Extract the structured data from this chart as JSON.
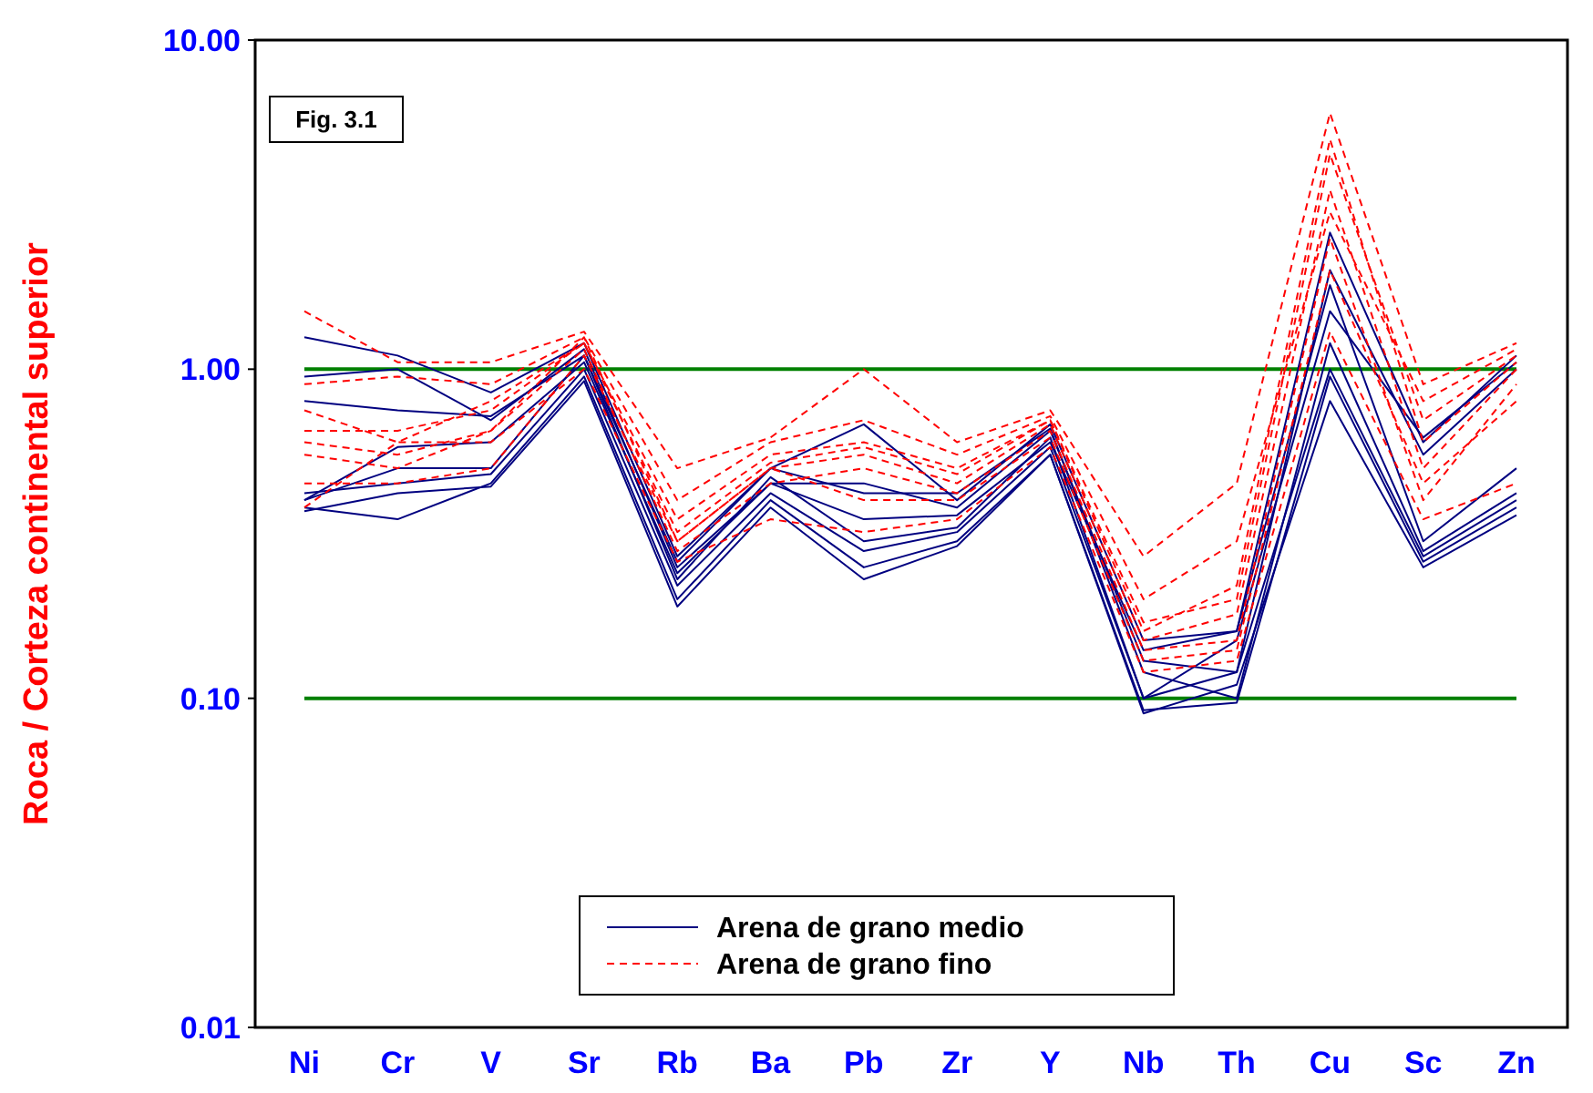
{
  "chart_data": {
    "type": "line",
    "log": true,
    "ylabel": "Roca / Corteza continental superior",
    "annotations": [
      "Fig. 3.1"
    ],
    "legend": "bottom",
    "grid": false,
    "categories": [
      "Ni",
      "Cr",
      "V",
      "Sr",
      "Rb",
      "Ba",
      "Pb",
      "Zr",
      "Y",
      "Nb",
      "Th",
      "Cu",
      "Sc",
      "Zn"
    ],
    "ylim": [
      0.01,
      10
    ],
    "yticks": [
      {
        "value": 0.01,
        "label": "0.01"
      },
      {
        "value": 0.1,
        "label": "0.10"
      },
      {
        "value": 1,
        "label": "1.00"
      },
      {
        "value": 10,
        "label": "10.00"
      }
    ],
    "ref_lines": [
      {
        "axis": "y",
        "value": 1,
        "color": "#008000"
      },
      {
        "axis": "y",
        "value": 0.1,
        "color": "#008000"
      }
    ],
    "series": [
      {
        "name": "Arena de grano medio",
        "color": "#000080",
        "line_style": "solid",
        "values": [
          1.25,
          1.1,
          0.85,
          1.2,
          0.27,
          0.5,
          0.68,
          0.4,
          0.68,
          0.15,
          0.16,
          2.6,
          0.6,
          1.1
        ]
      },
      {
        "color": "#000080",
        "line_style": "solid",
        "values": [
          0.95,
          1.0,
          0.7,
          1.15,
          0.25,
          0.45,
          0.45,
          0.38,
          0.65,
          0.13,
          0.12,
          2.0,
          0.55,
          1.0
        ]
      },
      {
        "color": "#000080",
        "line_style": "solid",
        "values": [
          0.8,
          0.75,
          0.72,
          1.1,
          0.23,
          0.47,
          0.3,
          0.33,
          0.62,
          0.1,
          0.15,
          1.5,
          0.62,
          1.05
        ]
      },
      {
        "color": "#000080",
        "line_style": "solid",
        "values": [
          0.4,
          0.5,
          0.5,
          1.1,
          0.26,
          0.5,
          0.42,
          0.42,
          0.66,
          0.12,
          0.1,
          1.2,
          0.28,
          0.42
        ]
      },
      {
        "color": "#000080",
        "line_style": "solid",
        "values": [
          0.38,
          0.35,
          0.45,
          0.95,
          0.2,
          0.4,
          0.25,
          0.3,
          0.55,
          0.09,
          0.11,
          0.8,
          0.25,
          0.36
        ]
      },
      {
        "color": "#000080",
        "line_style": "solid",
        "values": [
          0.42,
          0.45,
          0.48,
          1.0,
          0.22,
          0.42,
          0.28,
          0.32,
          0.58,
          0.1,
          0.12,
          1.0,
          0.27,
          0.4
        ]
      },
      {
        "color": "#000080",
        "line_style": "solid",
        "values": [
          0.4,
          0.58,
          0.6,
          1.05,
          0.24,
          0.45,
          0.35,
          0.36,
          0.6,
          0.14,
          0.16,
          1.8,
          0.3,
          0.5
        ]
      },
      {
        "color": "#000080",
        "line_style": "solid",
        "values": [
          0.37,
          0.42,
          0.44,
          0.92,
          0.19,
          0.38,
          0.23,
          0.29,
          0.55,
          0.092,
          0.097,
          0.95,
          0.26,
          0.38
        ]
      },
      {
        "name": "Arena de grano fino",
        "color": "#ff0000",
        "line_style": "dashed",
        "values": [
          1.5,
          1.05,
          1.05,
          1.3,
          0.5,
          0.62,
          1.0,
          0.6,
          0.75,
          0.27,
          0.45,
          6.0,
          0.9,
          1.2
        ]
      },
      {
        "color": "#ff0000",
        "line_style": "dashed",
        "values": [
          0.75,
          0.6,
          0.8,
          1.2,
          0.35,
          0.55,
          0.6,
          0.5,
          0.7,
          0.17,
          0.2,
          4.5,
          0.7,
          1.1
        ]
      },
      {
        "color": "#ff0000",
        "line_style": "dashed",
        "values": [
          0.6,
          0.55,
          0.65,
          1.25,
          0.3,
          0.5,
          0.55,
          0.45,
          0.68,
          0.15,
          0.18,
          3.5,
          0.5,
          1.0
        ]
      },
      {
        "color": "#ff0000",
        "line_style": "dashed",
        "values": [
          0.55,
          0.5,
          0.65,
          1.15,
          0.28,
          0.45,
          0.5,
          0.42,
          0.65,
          0.14,
          0.15,
          2.5,
          0.4,
          0.9
        ]
      },
      {
        "color": "#ff0000",
        "line_style": "dashed",
        "values": [
          0.65,
          0.65,
          0.75,
          1.2,
          0.32,
          0.52,
          0.58,
          0.48,
          0.7,
          0.16,
          0.22,
          5.0,
          0.6,
          1.05
        ]
      },
      {
        "color": "#ff0000",
        "line_style": "dashed",
        "values": [
          0.45,
          0.45,
          0.5,
          1.1,
          0.3,
          0.5,
          0.4,
          0.4,
          0.62,
          0.13,
          0.14,
          2.0,
          0.45,
          0.8
        ]
      },
      {
        "color": "#ff0000",
        "line_style": "dashed",
        "values": [
          0.9,
          0.95,
          0.9,
          1.25,
          0.4,
          0.6,
          0.7,
          0.55,
          0.72,
          0.2,
          0.3,
          3.0,
          0.8,
          1.15
        ]
      },
      {
        "color": "#ff0000",
        "line_style": "dashed",
        "values": [
          0.38,
          0.6,
          0.6,
          1.0,
          0.26,
          0.35,
          0.32,
          0.35,
          0.58,
          0.12,
          0.13,
          1.3,
          0.35,
          0.45
        ]
      }
    ]
  }
}
